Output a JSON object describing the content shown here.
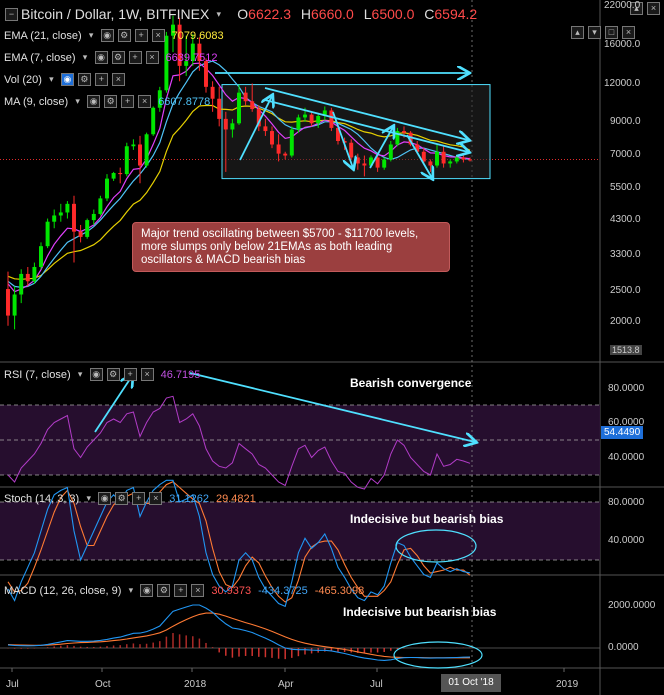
{
  "header": {
    "title": "Bitcoin / Dollar, 1W, BITFINEX",
    "ohlc": {
      "o_label": "O",
      "o": "6622.3",
      "h_label": "H",
      "h": "6660.0",
      "l_label": "L",
      "l": "6500.0",
      "c_label": "C",
      "c": "6594.2"
    }
  },
  "indicators": [
    {
      "label": "EMA (21, close)",
      "value": "7079.6083",
      "color": "#ffeb3b"
    },
    {
      "label": "EMA (7, close)",
      "value": "6639.7512",
      "color": "#e040fb"
    },
    {
      "label": "Vol (20)",
      "value": "",
      "color": "#888888"
    },
    {
      "label": "MA (9, close)",
      "value": "6607.8778",
      "color": "#4fc3f7"
    }
  ],
  "panes": {
    "rsi": {
      "label": "RSI (7, close)",
      "value": "46.7195",
      "annotation": "Bearish convergence",
      "current": "54.4490",
      "ticks": [
        "80.0000",
        "60.0000",
        "40.0000"
      ]
    },
    "stoch": {
      "label": "Stoch (14, 3, 3)",
      "k": "31.1262",
      "d": "29.4821",
      "annotation": "Indecisive but bearish bias",
      "ticks": [
        "80.0000",
        "40.0000"
      ]
    },
    "macd": {
      "label": "MACD (12, 26, close, 9)",
      "hist": "30.9373",
      "macd": "-434.3725",
      "signal": "-465.3098",
      "annotation": "Indecisive but bearish bias",
      "ticks": [
        "2000.0000",
        "0.0000"
      ]
    }
  },
  "note": "Major trend oscillating between $5700 - $11700 levels, more slumps only below 21EMAs as both leading oscillators & MACD bearish bias",
  "price_axis": [
    "22000.0",
    "16000.0",
    "12000.0",
    "9000.0",
    "7000.0",
    "5500.0",
    "4300.0",
    "3300.0",
    "2500.0",
    "2000.0",
    "1513.8"
  ],
  "time_axis": [
    "Jul",
    "Oct",
    "2018",
    "Apr",
    "Jul",
    "2019"
  ],
  "cursor_date": "01 Oct '18",
  "colors": {
    "up": "#00e600",
    "down": "#ff2a2a",
    "trend": "#4fe0ff",
    "rsi": "#b23cc8",
    "stoch_k": "#2196f3",
    "stoch_d": "#ff7a33",
    "macd": "#2196f3",
    "signal": "#ff7a33",
    "ema21": "#e6d000",
    "ema7": "#e040fb",
    "ma9": "#4fc3f7"
  },
  "chart_data": {
    "type": "candlestick",
    "title": "Bitcoin / Dollar, 1W, BITFINEX",
    "scale": "log",
    "ylim": [
      1513.8,
      22000
    ],
    "candles": [
      {
        "o": 2450,
        "h": 2800,
        "l": 1850,
        "c": 2000
      },
      {
        "o": 2000,
        "h": 2500,
        "l": 1800,
        "c": 2350
      },
      {
        "o": 2350,
        "h": 2850,
        "l": 2200,
        "c": 2750
      },
      {
        "o": 2750,
        "h": 2900,
        "l": 2500,
        "c": 2600
      },
      {
        "o": 2600,
        "h": 3000,
        "l": 2550,
        "c": 2900
      },
      {
        "o": 2900,
        "h": 3500,
        "l": 2850,
        "c": 3400
      },
      {
        "o": 3400,
        "h": 4200,
        "l": 3350,
        "c": 4100
      },
      {
        "o": 4100,
        "h": 4500,
        "l": 3900,
        "c": 4300
      },
      {
        "o": 4300,
        "h": 4700,
        "l": 4100,
        "c": 4400
      },
      {
        "o": 4400,
        "h": 4800,
        "l": 4200,
        "c": 4700
      },
      {
        "o": 4700,
        "h": 5000,
        "l": 3000,
        "c": 3800
      },
      {
        "o": 3800,
        "h": 4000,
        "l": 3500,
        "c": 3650
      },
      {
        "o": 3650,
        "h": 4200,
        "l": 3600,
        "c": 4150
      },
      {
        "o": 4150,
        "h": 4500,
        "l": 4000,
        "c": 4350
      },
      {
        "o": 4350,
        "h": 5000,
        "l": 4300,
        "c": 4900
      },
      {
        "o": 4900,
        "h": 5900,
        "l": 4800,
        "c": 5700
      },
      {
        "o": 5700,
        "h": 6000,
        "l": 5600,
        "c": 5950
      },
      {
        "o": 5950,
        "h": 6200,
        "l": 5500,
        "c": 5900
      },
      {
        "o": 5900,
        "h": 7500,
        "l": 5800,
        "c": 7300
      },
      {
        "o": 7300,
        "h": 7700,
        "l": 7100,
        "c": 7400
      },
      {
        "o": 7400,
        "h": 7900,
        "l": 5500,
        "c": 6300
      },
      {
        "o": 6300,
        "h": 8100,
        "l": 6200,
        "c": 8000
      },
      {
        "o": 8000,
        "h": 9900,
        "l": 7900,
        "c": 9800
      },
      {
        "o": 9800,
        "h": 11500,
        "l": 9500,
        "c": 11200
      },
      {
        "o": 11200,
        "h": 17500,
        "l": 11000,
        "c": 17000
      },
      {
        "o": 17000,
        "h": 19800,
        "l": 15000,
        "c": 18500
      },
      {
        "o": 18500,
        "h": 19500,
        "l": 12000,
        "c": 13500
      },
      {
        "o": 13500,
        "h": 17000,
        "l": 12500,
        "c": 14000
      },
      {
        "o": 14000,
        "h": 17200,
        "l": 13500,
        "c": 16000
      },
      {
        "o": 16000,
        "h": 16800,
        "l": 13000,
        "c": 14000
      },
      {
        "o": 14000,
        "h": 14300,
        "l": 11000,
        "c": 11500
      },
      {
        "o": 11500,
        "h": 12000,
        "l": 9500,
        "c": 10500
      },
      {
        "o": 10500,
        "h": 11500,
        "l": 8500,
        "c": 9000
      },
      {
        "o": 9000,
        "h": 9500,
        "l": 6000,
        "c": 8300
      },
      {
        "o": 8300,
        "h": 9000,
        "l": 7800,
        "c": 8700
      },
      {
        "o": 8700,
        "h": 11700,
        "l": 8600,
        "c": 11000
      },
      {
        "o": 11000,
        "h": 11500,
        "l": 10000,
        "c": 10300
      },
      {
        "o": 10300,
        "h": 11800,
        "l": 9500,
        "c": 9700
      },
      {
        "o": 9700,
        "h": 10000,
        "l": 8200,
        "c": 8500
      },
      {
        "o": 8500,
        "h": 9000,
        "l": 7900,
        "c": 8200
      },
      {
        "o": 8200,
        "h": 8500,
        "l": 7200,
        "c": 7400
      },
      {
        "o": 7400,
        "h": 8000,
        "l": 6500,
        "c": 6900
      },
      {
        "o": 6900,
        "h": 7000,
        "l": 6600,
        "c": 6800
      },
      {
        "o": 6800,
        "h": 8500,
        "l": 6700,
        "c": 8300
      },
      {
        "o": 8300,
        "h": 9300,
        "l": 8100,
        "c": 9100
      },
      {
        "o": 9100,
        "h": 9800,
        "l": 8800,
        "c": 9300
      },
      {
        "o": 9300,
        "h": 9500,
        "l": 8500,
        "c": 8700
      },
      {
        "o": 8700,
        "h": 9300,
        "l": 8400,
        "c": 9200
      },
      {
        "o": 9200,
        "h": 9900,
        "l": 8900,
        "c": 9600
      },
      {
        "o": 9600,
        "h": 9800,
        "l": 8200,
        "c": 8400
      },
      {
        "o": 8400,
        "h": 8500,
        "l": 7400,
        "c": 7600
      },
      {
        "o": 7600,
        "h": 7800,
        "l": 7100,
        "c": 7500
      },
      {
        "o": 7500,
        "h": 7700,
        "l": 6600,
        "c": 6700
      },
      {
        "o": 6700,
        "h": 6900,
        "l": 6100,
        "c": 6400
      },
      {
        "o": 6400,
        "h": 6800,
        "l": 5800,
        "c": 6300
      },
      {
        "o": 6300,
        "h": 6800,
        "l": 6200,
        "c": 6700
      },
      {
        "o": 6700,
        "h": 6800,
        "l": 6000,
        "c": 6200
      },
      {
        "o": 6200,
        "h": 6700,
        "l": 6100,
        "c": 6600
      },
      {
        "o": 6600,
        "h": 7600,
        "l": 6500,
        "c": 7400
      },
      {
        "o": 7400,
        "h": 8400,
        "l": 7300,
        "c": 8200
      },
      {
        "o": 8200,
        "h": 8500,
        "l": 7800,
        "c": 8100
      },
      {
        "o": 8100,
        "h": 8200,
        "l": 7300,
        "c": 7400
      },
      {
        "o": 7400,
        "h": 7600,
        "l": 6900,
        "c": 7000
      },
      {
        "o": 7000,
        "h": 7200,
        "l": 6400,
        "c": 6500
      },
      {
        "o": 6500,
        "h": 6600,
        "l": 6000,
        "c": 6300
      },
      {
        "o": 6300,
        "h": 7400,
        "l": 6200,
        "c": 7000
      },
      {
        "o": 7000,
        "h": 7300,
        "l": 6200,
        "c": 6400
      },
      {
        "o": 6400,
        "h": 6600,
        "l": 6200,
        "c": 6500
      },
      {
        "o": 6500,
        "h": 6800,
        "l": 6400,
        "c": 6700
      },
      {
        "o": 6700,
        "h": 6900,
        "l": 6450,
        "c": 6600
      },
      {
        "o": 6600,
        "h": 6700,
        "l": 6500,
        "c": 6594.2
      }
    ],
    "ema21": [
      2700,
      2650,
      2640,
      2650,
      2660,
      2720,
      2840,
      2980,
      3100,
      3220,
      3260,
      3290,
      3360,
      3440,
      3570,
      3770,
      3960,
      4140,
      4420,
      4690,
      4830,
      5120,
      5530,
      6020,
      7020,
      7940,
      8380,
      8910,
      9530,
      9940,
      9970,
      9970,
      9700,
      9680,
      9630,
      9870,
      9930,
      9900,
      9760,
      9580,
      9370,
      9050,
      8800,
      8780,
      8830,
      8870,
      8810,
      8870,
      8910,
      8860,
      8750,
      8680,
      8500,
      8300,
      8150,
      8070,
      7920,
      7840,
      7910,
      8040,
      8100,
      8020,
      7940,
      7790,
      7640,
      7600,
      7480,
      7380,
      7330,
      7260,
      7079.6
    ],
    "ema7": [
      2550,
      2400,
      2450,
      2520,
      2620,
      2840,
      3160,
      3450,
      3680,
      3900,
      3880,
      3800,
      3890,
      4000,
      4230,
      4600,
      4930,
      5170,
      5700,
      6120,
      6160,
      6620,
      7410,
      8360,
      10520,
      12510,
      12600,
      12950,
      13720,
      13790,
      13220,
      12540,
      11660,
      10820,
      10300,
      10600,
      10520,
      10200,
      9650,
      9190,
      8660,
      8120,
      7750,
      7840,
      8160,
      8440,
      8510,
      8690,
      8920,
      8790,
      8490,
      8240,
      7850,
      7480,
      7190,
      7050,
      6840,
      6780,
      7030,
      7370,
      7550,
      7510,
      7380,
      7160,
      6940,
      6930,
      6800,
      6730,
      6720,
      6680,
      6639.8
    ],
    "ma9": [
      2600,
      2500,
      2480,
      2500,
      2560,
      2700,
      2900,
      3100,
      3300,
      3500,
      3600,
      3700,
      3800,
      3950,
      4150,
      4400,
      4650,
      4900,
      5250,
      5600,
      5900,
      6300,
      6800,
      7500,
      8800,
      10100,
      11000,
      11900,
      12900,
      13500,
      13800,
      14000,
      13600,
      13000,
      12200,
      11500,
      10600,
      10200,
      9900,
      9700,
      9500,
      9000,
      8600,
      8400,
      8300,
      8400,
      8500,
      8600,
      8800,
      8800,
      8700,
      8500,
      8300,
      8000,
      7600,
      7200,
      6900,
      6700,
      6600,
      6700,
      6900,
      7100,
      7200,
      7200,
      7100,
      7000,
      6900,
      6800,
      6700,
      6650,
      6607.9
    ],
    "rsi": [
      40,
      36,
      44,
      48,
      52,
      58,
      66,
      70,
      72,
      74,
      55,
      50,
      56,
      60,
      64,
      70,
      72,
      70,
      75,
      76,
      62,
      70,
      76,
      78,
      84,
      85,
      70,
      72,
      75,
      68,
      55,
      48,
      45,
      44,
      47,
      58,
      55,
      52,
      46,
      44,
      40,
      36,
      34,
      45,
      55,
      57,
      50,
      54,
      56,
      48,
      42,
      41,
      36,
      33,
      32,
      38,
      35,
      40,
      52,
      60,
      57,
      50,
      46,
      42,
      40,
      52,
      45,
      46,
      49,
      48,
      46.7
    ],
    "stoch_k": [
      20,
      12,
      25,
      35,
      45,
      60,
      75,
      85,
      88,
      90,
      60,
      40,
      50,
      60,
      70,
      80,
      85,
      80,
      88,
      90,
      70,
      80,
      88,
      92,
      95,
      95,
      80,
      82,
      85,
      70,
      45,
      30,
      22,
      18,
      22,
      40,
      45,
      40,
      28,
      20,
      15,
      10,
      8,
      25,
      45,
      55,
      48,
      52,
      58,
      48,
      35,
      28,
      20,
      14,
      12,
      18,
      16,
      22,
      38,
      52,
      50,
      42,
      36,
      30,
      28,
      38,
      34,
      32,
      34,
      32,
      31.1
    ],
    "stoch_d": [
      25,
      18,
      19,
      24,
      35,
      47,
      60,
      73,
      83,
      88,
      79,
      63,
      50,
      50,
      60,
      70,
      78,
      82,
      84,
      86,
      83,
      79,
      79,
      87,
      92,
      94,
      90,
      86,
      82,
      79,
      67,
      48,
      32,
      23,
      21,
      27,
      36,
      42,
      38,
      29,
      21,
      15,
      11,
      14,
      26,
      42,
      49,
      52,
      53,
      53,
      47,
      37,
      28,
      21,
      15,
      15,
      15,
      19,
      25,
      37,
      47,
      48,
      43,
      36,
      31,
      32,
      33,
      35,
      33,
      33,
      29.5
    ],
    "macd": [
      150,
      120,
      110,
      105,
      110,
      130,
      170,
      230,
      290,
      350,
      340,
      320,
      320,
      330,
      360,
      410,
      470,
      520,
      610,
      700,
      710,
      780,
      900,
      1050,
      1400,
      1750,
      1850,
      1950,
      2050,
      2050,
      1900,
      1700,
      1400,
      1150,
      950,
      900,
      830,
      740,
      600,
      470,
      320,
      150,
      0,
      -60,
      -80,
      -80,
      -100,
      -110,
      -110,
      -140,
      -200,
      -260,
      -340,
      -420,
      -480,
      -520,
      -570,
      -590,
      -560,
      -500,
      -460,
      -450,
      -450,
      -470,
      -480,
      -470,
      -470,
      -460,
      -450,
      -440,
      -434.4
    ],
    "signal": [
      160,
      150,
      140,
      133,
      128,
      128,
      136,
      155,
      182,
      215,
      240,
      256,
      269,
      281,
      297,
      320,
      350,
      384,
      429,
      483,
      528,
      578,
      642,
      724,
      859,
      1037,
      1200,
      1350,
      1490,
      1600,
      1660,
      1660,
      1610,
      1520,
      1410,
      1310,
      1210,
      1120,
      1020,
      910,
      790,
      660,
      530,
      410,
      310,
      230,
      160,
      110,
      60,
      20,
      -25,
      -70,
      -125,
      -185,
      -245,
      -300,
      -355,
      -400,
      -430,
      -445,
      -450,
      -452,
      -455,
      -460,
      -465,
      -465,
      -466,
      -466,
      -465,
      -465,
      -465.3
    ],
    "hist_value": "30.9373",
    "annotations": [
      "Bearish convergence",
      "Indecisive but bearish bias",
      "Indecisive but bearish bias"
    ]
  }
}
